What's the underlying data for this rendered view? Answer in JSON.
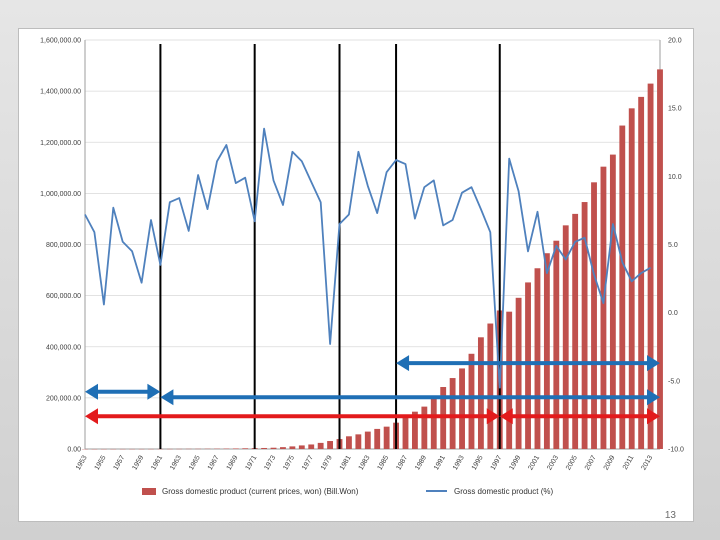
{
  "colors": {
    "bars": "#c0504d",
    "line": "#4f81bd",
    "blue_arrow": "#1f6fb5",
    "red_arrow": "#e31a1c",
    "vlines": "#000000",
    "grid": "#d9d9d9"
  },
  "slide": {
    "page_number": "13"
  },
  "chart_data": {
    "type": "bar+line",
    "years": [
      1953,
      1954,
      1955,
      1956,
      1957,
      1958,
      1959,
      1960,
      1961,
      1962,
      1963,
      1964,
      1965,
      1966,
      1967,
      1968,
      1969,
      1970,
      1971,
      1972,
      1973,
      1974,
      1975,
      1976,
      1977,
      1978,
      1979,
      1980,
      1981,
      1982,
      1983,
      1984,
      1985,
      1986,
      1987,
      1988,
      1989,
      1990,
      1991,
      1992,
      1993,
      1994,
      1995,
      1996,
      1997,
      1998,
      1999,
      2000,
      2001,
      2002,
      2003,
      2004,
      2005,
      2006,
      2007,
      2008,
      2009,
      2010,
      2011,
      2012,
      2013,
      2014
    ],
    "x_tick_labels": [
      "1953",
      "1955",
      "1957",
      "1959",
      "1961",
      "1963",
      "1965",
      "1967",
      "1969",
      "1971",
      "1973",
      "1975",
      "1977",
      "1979",
      "1981",
      "1983",
      "1985",
      "1987",
      "1989",
      "1991",
      "1993",
      "1995",
      "1997",
      "1999",
      "2001",
      "2003",
      "2005",
      "2007",
      "2009",
      "2011",
      "2013"
    ],
    "y_left": {
      "min": 0,
      "max": 1600000,
      "ticks": [
        "0.00",
        "200,000.00",
        "400,000.00",
        "600,000.00",
        "800,000.00",
        "1,000,000.00",
        "1,200,000.00",
        "1,400,000.00",
        "1,600,000.00"
      ]
    },
    "y_right": {
      "min": -10,
      "max": 20,
      "ticks": [
        "-10.0",
        "-5.0",
        "0.0",
        "5.0",
        "10.0",
        "15.0",
        "20.0"
      ]
    },
    "series": [
      {
        "name": "Gross domestic product (current prices, won) (Bill.Won)",
        "type": "bar",
        "axis": "left",
        "values": [
          48,
          65,
          110,
          150,
          197,
          205,
          217,
          250,
          298,
          366,
          527,
          725,
          806,
          1032,
          1270,
          1599,
          2069,
          2777,
          3376,
          4002,
          5004,
          7196,
          10186,
          13994,
          17738,
          23948,
          31198,
          38774,
          49670,
          57286,
          68080,
          78591,
          87432,
          102985,
          121698,
          145994,
          165802,
          200556,
          242481,
          277541,
          315181,
          372493,
          436989,
          490851,
          542002,
          537215,
          591453,
          651634,
          707021,
          765873,
          814826,
          874917,
          919797,
          966054,
          1043258,
          1104492,
          1151708,
          1265308,
          1332681,
          1377457,
          1429445,
          1485078
        ]
      },
      {
        "name": "Gross domestic product (%)",
        "type": "line",
        "axis": "right",
        "values": [
          7.2,
          5.9,
          0.6,
          7.7,
          5.2,
          4.5,
          2.2,
          6.8,
          3.5,
          8.1,
          8.4,
          6.0,
          10.1,
          7.6,
          11.1,
          12.3,
          9.5,
          9.9,
          6.7,
          13.5,
          9.7,
          7.9,
          11.8,
          11.1,
          9.6,
          8.1,
          -2.3,
          6.5,
          7.2,
          11.8,
          9.3,
          7.3,
          10.3,
          11.2,
          10.9,
          6.9,
          9.2,
          9.7,
          6.4,
          6.8,
          8.8,
          9.2,
          7.6,
          5.9,
          -5.5,
          11.3,
          8.9,
          4.5,
          7.4,
          2.9,
          4.9,
          3.9,
          5.2,
          5.5,
          2.8,
          0.7,
          6.5,
          3.7,
          2.3,
          2.9,
          3.3
        ]
      }
    ],
    "annotations": {
      "vertical_lines_at_year": [
        1961,
        1971,
        1980,
        1986,
        1997
      ],
      "blue_arrows": [
        {
          "from": 1953,
          "to": 1961,
          "level": -5.8
        },
        {
          "from": 1961,
          "to": 2014,
          "level": -6.2
        },
        {
          "from": 1986,
          "to": 2014,
          "level": -3.7
        }
      ],
      "red_arrows": [
        {
          "from": 1953,
          "to": 1997,
          "level": -7.6
        },
        {
          "from": 1997,
          "to": 2014,
          "level": -7.6
        }
      ]
    },
    "legend_position": "bottom"
  }
}
